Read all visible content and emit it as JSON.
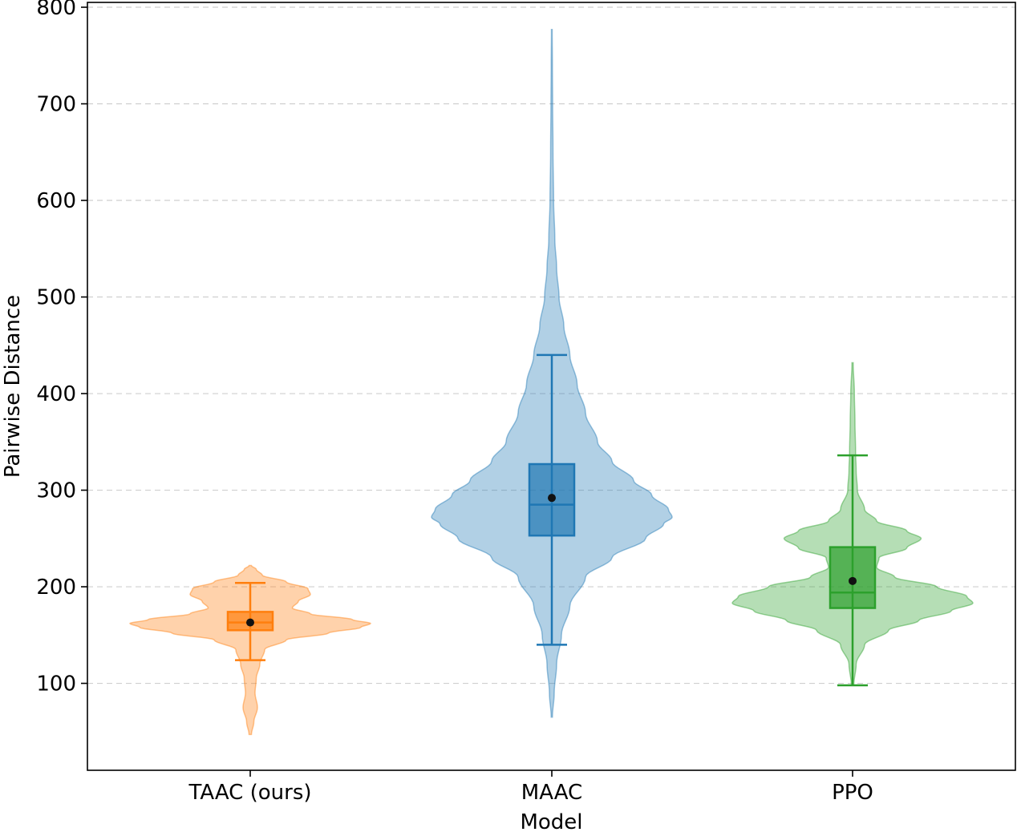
{
  "chart_data": {
    "type": "violin",
    "title": "",
    "xlabel": "Model",
    "ylabel": "Pairwise Distance",
    "ylim": [
      10,
      805
    ],
    "yticks": [
      100,
      200,
      300,
      400,
      500,
      600,
      700,
      800
    ],
    "grid": "horizontal dashed",
    "categories": [
      "TAAC (ours)",
      "MAAC",
      "PPO"
    ],
    "series": [
      {
        "name": "TAAC (ours)",
        "color": "#ff7f0e",
        "min": 47,
        "max": 222,
        "whisker_low": 124,
        "whisker_high": 204,
        "q1": 155,
        "median": 163,
        "q3": 174,
        "mean": 163,
        "density": [
          [
            47,
            0.01
          ],
          [
            60,
            0.03
          ],
          [
            75,
            0.06
          ],
          [
            90,
            0.04
          ],
          [
            105,
            0.05
          ],
          [
            120,
            0.08
          ],
          [
            135,
            0.12
          ],
          [
            145,
            0.3
          ],
          [
            152,
            0.65
          ],
          [
            158,
            0.92
          ],
          [
            162,
            1.0
          ],
          [
            166,
            0.85
          ],
          [
            172,
            0.5
          ],
          [
            178,
            0.35
          ],
          [
            185,
            0.4
          ],
          [
            192,
            0.5
          ],
          [
            198,
            0.48
          ],
          [
            205,
            0.3
          ],
          [
            212,
            0.1
          ],
          [
            218,
            0.05
          ],
          [
            222,
            0.01
          ]
        ]
      },
      {
        "name": "MAAC",
        "color": "#1f77b4",
        "min": 65,
        "max": 777,
        "whisker_low": 140,
        "whisker_high": 440,
        "q1": 253,
        "median": 285,
        "q3": 327,
        "mean": 292,
        "density": [
          [
            65,
            0.005
          ],
          [
            90,
            0.02
          ],
          [
            120,
            0.04
          ],
          [
            150,
            0.08
          ],
          [
            180,
            0.15
          ],
          [
            210,
            0.28
          ],
          [
            230,
            0.5
          ],
          [
            250,
            0.78
          ],
          [
            265,
            0.93
          ],
          [
            272,
            1.0
          ],
          [
            280,
            0.97
          ],
          [
            295,
            0.83
          ],
          [
            310,
            0.68
          ],
          [
            330,
            0.5
          ],
          [
            350,
            0.38
          ],
          [
            380,
            0.28
          ],
          [
            410,
            0.21
          ],
          [
            440,
            0.15
          ],
          [
            470,
            0.1
          ],
          [
            500,
            0.06
          ],
          [
            530,
            0.04
          ],
          [
            560,
            0.025
          ],
          [
            600,
            0.015
          ],
          [
            650,
            0.01
          ],
          [
            700,
            0.007
          ],
          [
            740,
            0.005
          ],
          [
            777,
            0.003
          ]
        ]
      },
      {
        "name": "PPO",
        "color": "#2ca02c",
        "min": 98,
        "max": 432,
        "whisker_low": 98,
        "whisker_high": 336,
        "q1": 178,
        "median": 194,
        "q3": 241,
        "mean": 206,
        "density": [
          [
            98,
            0.01
          ],
          [
            120,
            0.03
          ],
          [
            140,
            0.1
          ],
          [
            155,
            0.3
          ],
          [
            165,
            0.55
          ],
          [
            175,
            0.82
          ],
          [
            183,
            1.0
          ],
          [
            190,
            0.95
          ],
          [
            200,
            0.7
          ],
          [
            210,
            0.35
          ],
          [
            220,
            0.2
          ],
          [
            230,
            0.22
          ],
          [
            240,
            0.45
          ],
          [
            250,
            0.57
          ],
          [
            258,
            0.45
          ],
          [
            268,
            0.2
          ],
          [
            280,
            0.1
          ],
          [
            300,
            0.04
          ],
          [
            320,
            0.03
          ],
          [
            340,
            0.025
          ],
          [
            370,
            0.02
          ],
          [
            400,
            0.015
          ],
          [
            432,
            0.005
          ]
        ]
      }
    ]
  }
}
